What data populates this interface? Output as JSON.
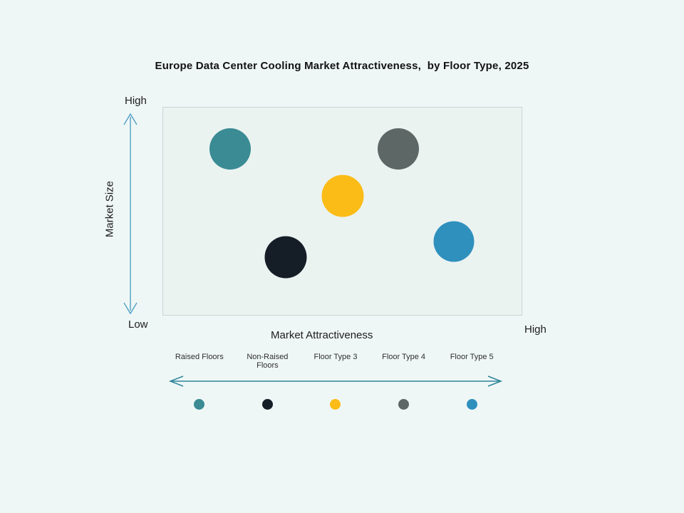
{
  "title": "Europe Data Center Cooling Market Attractiveness,  by Floor Type, 2025",
  "axes": {
    "y_label": "Market Size",
    "y_top": "High",
    "y_bottom": "Low",
    "x_label": "Market Attractiveness",
    "x_right": "High"
  },
  "colors": {
    "background": "#eff7f6",
    "plot_fill": "#ebf3f1",
    "plot_border": "#ccd4d3",
    "y_arrow": "#4f9fc4",
    "x_arrow": "#2d8498",
    "title_text": "#121212",
    "legend_text": "#2e2e2e"
  },
  "chart_data": {
    "type": "scatter",
    "subtype": "bubble",
    "title": "Europe Data Center Cooling Market Attractiveness,  by Floor Type, 2025",
    "xlabel": "Market Attractiveness",
    "ylabel": "Market Size",
    "x_axis_endpoints": [
      "",
      "High"
    ],
    "y_axis_endpoints": [
      "Low",
      "High"
    ],
    "xlim": [
      0,
      1
    ],
    "ylim": [
      0,
      1
    ],
    "grid": false,
    "legend_position": "bottom",
    "sizes_equal": true,
    "series": [
      {
        "name": "Raised Floors",
        "x": 0.186,
        "y": 0.8,
        "size": 58,
        "color": "#3a8b94"
      },
      {
        "name": "Non-Raised Floors",
        "x": 0.341,
        "y": 0.28,
        "size": 59,
        "color": "#151d27"
      },
      {
        "name": "Floor Type 3",
        "x": 0.5,
        "y": 0.575,
        "size": 59,
        "color": "#fbbc17"
      },
      {
        "name": "Floor Type 4",
        "x": 0.657,
        "y": 0.8,
        "size": 58,
        "color": "#5d6866"
      },
      {
        "name": "Floor Type 5",
        "x": 0.812,
        "y": 0.355,
        "size": 57,
        "color": "#3090bd"
      }
    ],
    "legend_dot_size": 15
  }
}
